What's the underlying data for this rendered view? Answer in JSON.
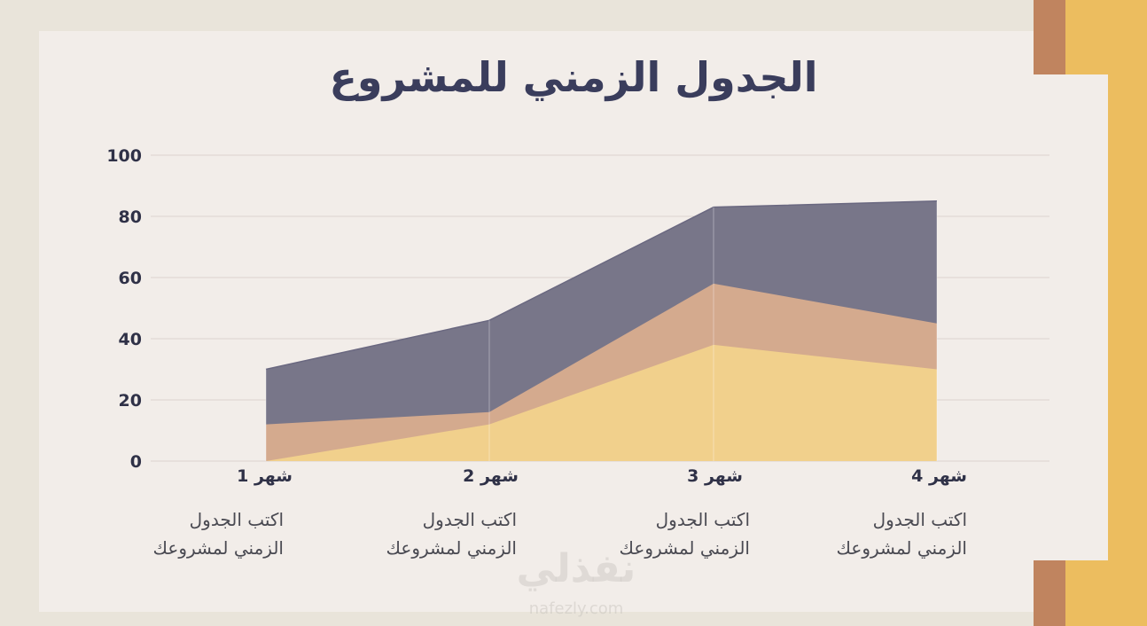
{
  "title": "الجدول الزمني للمشروع",
  "colors": {
    "background": "#e9e4da",
    "card": "#f2ede9",
    "series_dark": "#787689",
    "series_orange": "#d4aa8e",
    "series_yellow": "#f1d08c",
    "deco_gold": "#ecbd5f",
    "deco_brown": "#c0845f"
  },
  "chart_data": {
    "type": "area",
    "categories": [
      "شهر 1",
      "شهر 2",
      "شهر 3",
      "شهر 4"
    ],
    "series": [
      {
        "values": [
          30,
          46,
          83,
          85
        ]
      },
      {
        "values": [
          12,
          16,
          58,
          45
        ]
      },
      {
        "values": [
          0,
          12,
          38,
          30
        ]
      }
    ],
    "ylim": [
      0,
      100
    ],
    "yticks": [
      "0",
      "20",
      "40",
      "60",
      "80",
      "100"
    ],
    "grid": true
  },
  "columns": [
    {
      "month": "شهر 1",
      "line1": "اكتب الجدول",
      "line2": "الزمني لمشروعك"
    },
    {
      "month": "شهر 2",
      "line1": "اكتب الجدول",
      "line2": "الزمني لمشروعك"
    },
    {
      "month": "شهر 3",
      "line1": "اكتب الجدول",
      "line2": "الزمني لمشروعك"
    },
    {
      "month": "شهر 4",
      "line1": "اكتب الجدول",
      "line2": "الزمني لمشروعك"
    }
  ],
  "watermark": {
    "text": "نفذلي",
    "sub": "nafezly.com"
  }
}
